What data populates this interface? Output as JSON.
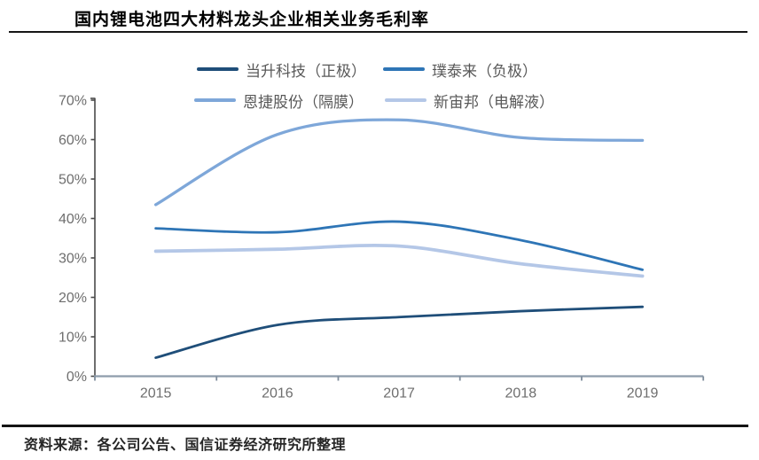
{
  "title": "国内锂电池四大材料龙头企业相关业务毛利率",
  "source": "资料来源：各公司公告、国信证券经济研究所整理",
  "legend": {
    "items": [
      {
        "label": "当升科技（正极）",
        "color": "#1f4e79"
      },
      {
        "label": "璞泰来（负极）",
        "color": "#2e75b6"
      },
      {
        "label": "恩捷股份（隔膜）",
        "color": "#7ea7d9"
      },
      {
        "label": "新宙邦（电解液）",
        "color": "#b4c7e7"
      }
    ]
  },
  "chart_data": {
    "type": "line",
    "title": "国内锂电池四大材料龙头企业相关业务毛利率",
    "categories": [
      "2015",
      "2016",
      "2017",
      "2018",
      "2019"
    ],
    "series": [
      {
        "name": "当升科技（正极）",
        "color": "#1f4e79",
        "values": [
          4.7,
          13.0,
          15.0,
          16.5,
          17.6
        ]
      },
      {
        "name": "璞泰来（负极）",
        "color": "#2e75b6",
        "values": [
          37.5,
          36.5,
          39.2,
          34.5,
          27.0
        ]
      },
      {
        "name": "恩捷股份（隔膜）",
        "color": "#7ea7d9",
        "values": [
          43.5,
          61.3,
          65.0,
          60.5,
          59.8
        ]
      },
      {
        "name": "新宙邦（电解液）",
        "color": "#b4c7e7",
        "values": [
          31.7,
          32.2,
          33.0,
          28.5,
          25.4
        ]
      }
    ],
    "xlabel": "",
    "ylabel": "",
    "ylim": [
      0,
      70
    ],
    "y_ticks": [
      "0%",
      "10%",
      "20%",
      "30%",
      "40%",
      "50%",
      "60%",
      "70%"
    ],
    "grid": false,
    "smooth": true,
    "legend_position": "top",
    "x_ticks_between_categories": true,
    "background": "#ffffff"
  }
}
